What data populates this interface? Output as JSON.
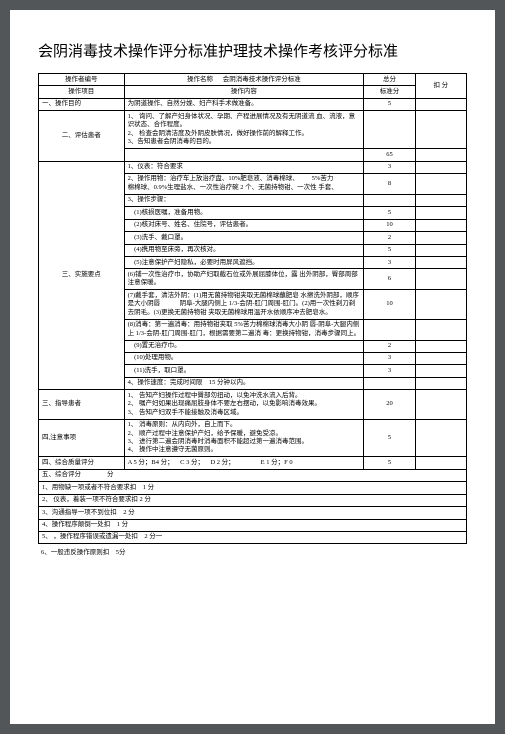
{
  "title": "会阴消毒技术操作评分标准护理技术操作考核评分标准",
  "header": {
    "r1c1": "操作者编号",
    "r1c2": "操作名称",
    "r1c3": "会阴消毒技术操作评分标准",
    "r1c4": "总分",
    "r1c5": "扣 分",
    "r2c1": "操作项目",
    "r2c2": "操作内容",
    "r2c3": "标准分"
  },
  "rows": [
    {
      "c1": "一、操作目的",
      "c2": "为阴道操作、自然分娩、妇产科手术做准备。",
      "c3": "5"
    },
    {
      "c1": "二、评估患者",
      "c2": "1、 询问、了解产妇身体状况、孕期、产程进展情况及有无阴道流 血、流液，意识状态、合作程度。\n2、 检查会阴清洁度及外阴皮肤情况，做好操作前的解释工作。\n3、告知患者会阴消毒的目的。",
      "c3": ""
    },
    {
      "c1": "",
      "c2": "",
      "c3": "65",
      "span": true
    },
    {
      "c2": "1、仪表：符合要求",
      "c3": "3"
    },
    {
      "c2": "2、操作用物：治疗车上放治疗盘、10%肥皂液、消毒棉球、  5%苦力\n棉棉球、0.9%生理盐水、一次性治疗碗 2 个、无菌持物钳、一次性 手套、",
      "c3": "8"
    },
    {
      "c2": "3、操作步骤：",
      "c3": ""
    },
    {
      "c2": " (1)核损医嘱，准备用物。",
      "c3": "5"
    },
    {
      "c2": " (2)核对床号、姓名、住院号，评估患者。",
      "c3": "10"
    },
    {
      "c2": " (3)洗手、戴口罩。",
      "c3": "2"
    },
    {
      "c2": " (4)携用物至床旁，再次核对。",
      "c3": "5"
    },
    {
      "c2": " (5)注意保护产妇隐私，必要时用屏风遮挡。",
      "c3": "3"
    },
    {
      "c1": "三、实施要点",
      "c2": "(6)铺一次性治疗巾，协助产妇取截石位或外展屈膝体位，露 出外阴部，臀部周部注意保暖。",
      "c3": "6"
    },
    {
      "c2": "(7)戴手套，清洁外阴：(1)用无菌持物钳夹取无菌棉球蘸肥皂 水擦洗外阴部，顺序是大小阴唇   阴阜-大腿内侧上 1/3-会阴-肛门周围-肛门。(2)用一次性剃刀剃去阴毛。(3)更换无菌持物钳 夹取无菌棉球用温开水依顺序冲去肥皂水。",
      "c3": "10"
    },
    {
      "c2": "(8)消毒：第一遍消毒：用持物钳夹取 5%苦力棉棉球消毒大小阴 唇-阴阜-大腿内侧上 1/3-会阴-肛门周围-肛门，根据需要第二遍消 毒：更换持物钳，消毒步骤同上。",
      "c3": ""
    },
    {
      "c2": " (9)置无治疗巾。",
      "c3": "2"
    },
    {
      "c2": " (10)处理用物。",
      "c3": "3"
    },
    {
      "c2": " (11)洗手，取口罩。",
      "c3": "3"
    },
    {
      "c2": "4、操作速度：完成时间限 15 分钟以内。",
      "c3": ""
    },
    {
      "c1": "三、指导患者",
      "c2": "1、 告知产妇操作过程中臀部勿扭动，以免冲洗水流入后背。\n2、 嘱产妇如果出现痛屈肢身体不要左右摆动，以免影响消毒效果。\n3、 告知产妇双手不能接触及消毒区域。",
      "c3": "20"
    },
    {
      "c1": "四,注意事项",
      "c2": "1、 消毒原则：从内向外，自上而下。\n2、 顺产过程中注意保护产妇，给予保暖，避免受凉。\n3、 进行第二遍会阴消毒时消毒面积不能超过第一遍消毒范围。\n4、 操作中注意遵守无菌原则。",
      "c3": "5"
    },
    {
      "c1": "四、综合质量评分",
      "c2": "A 5 分；B4 分； C 3 分； D 2 分；    E 1 分；F 0",
      "c3": "5"
    }
  ],
  "footer": [
    "五、综合评分    分",
    "1、用物缺一项或者不符合要求扣 1 分",
    "2、 仪表，着装一项不符合要求扣 2 分",
    "3、沟通指导一项不到位扣 2 分",
    "4、操作程序颠倒一处扣 1 分",
    "5、 ，操作程序错误或遗漏一处扣 2 分一",
    "6、一般违反操作原则扣 5分"
  ]
}
